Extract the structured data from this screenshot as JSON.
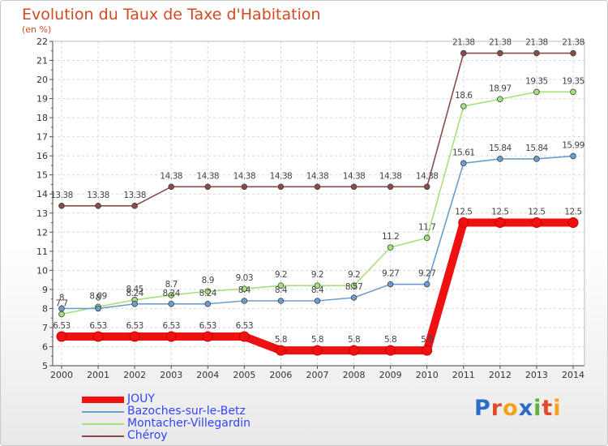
{
  "title": "Evolution du Taux de Taxe d'Habitation",
  "unit": "(en %)",
  "logo": {
    "letters": [
      {
        "char": "P",
        "color": "#2b6cc4"
      },
      {
        "char": "r",
        "color": "#e04b2e"
      },
      {
        "char": "o",
        "color": "#f2a21b"
      },
      {
        "char": "x",
        "color": "#2b6cc4"
      },
      {
        "char": "i",
        "color": "#5fb33a"
      },
      {
        "char": "t",
        "color": "#e04b2e"
      },
      {
        "char": "i",
        "color": "#f2a21b"
      }
    ]
  },
  "chart_data": {
    "type": "line",
    "x": [
      2000,
      2001,
      2002,
      2003,
      2004,
      2005,
      2006,
      2007,
      2008,
      2009,
      2010,
      2011,
      2012,
      2013,
      2014
    ],
    "ylim": [
      5,
      22
    ],
    "yticks": [
      5,
      6,
      7,
      8,
      9,
      10,
      11,
      12,
      13,
      14,
      15,
      16,
      17,
      18,
      19,
      20,
      21,
      22
    ],
    "grid": true,
    "legend_position": "bottom-left",
    "series": [
      {
        "name": "JOUY",
        "color": "#ee1111",
        "values": [
          6.53,
          6.53,
          6.53,
          6.53,
          6.53,
          6.53,
          5.8,
          5.8,
          5.8,
          5.8,
          5.8,
          12.5,
          12.5,
          12.5,
          12.5
        ],
        "labels": [
          "6.53",
          "6.53",
          "6.53",
          "6.53",
          "6.53",
          "6.53",
          "5.8",
          "5.8",
          "5.8",
          "5.8",
          "5.8",
          "12.5",
          "12.5",
          "12.5",
          "12.5"
        ]
      },
      {
        "name": "Bazoches-sur-le-Betz",
        "color": "#6a9ed0",
        "values": [
          8,
          8,
          8.24,
          8.24,
          8.24,
          8.4,
          8.4,
          8.4,
          8.57,
          9.27,
          9.27,
          15.61,
          15.84,
          15.84,
          15.99
        ],
        "labels": [
          "8",
          "8",
          "8.24",
          "8.24",
          "8.24",
          "8.4",
          "8.4",
          "8.4",
          "8.57",
          "9.27",
          "9.27",
          "15.61",
          "15.84",
          "15.84",
          "15.99"
        ]
      },
      {
        "name": "Montacher-Villegardin",
        "color": "#a6e07c",
        "values": [
          7.7,
          8.09,
          8.45,
          8.7,
          8.9,
          9.03,
          9.2,
          9.2,
          9.2,
          11.2,
          11.7,
          18.6,
          18.97,
          19.35,
          19.35
        ],
        "labels": [
          "7.7",
          "8.09",
          "8.45",
          "8.7",
          "8.9",
          "9.03",
          "9.2",
          "9.2",
          "9.2",
          "11.2",
          "11.7",
          "18.6",
          "18.97",
          "19.35",
          "19.35"
        ]
      },
      {
        "name": "Chéroy",
        "color": "#8b4a4a",
        "values": [
          13.38,
          13.38,
          13.38,
          14.38,
          14.38,
          14.38,
          14.38,
          14.38,
          14.38,
          14.38,
          14.38,
          21.38,
          21.38,
          21.38,
          21.38
        ],
        "labels": [
          "13.38",
          "13.38",
          "13.38",
          "14.38",
          "14.38",
          "14.38",
          "14.38",
          "14.38",
          "14.38",
          "14.38",
          "14.38",
          "21.38",
          "21.38",
          "21.38",
          "21.38"
        ]
      }
    ]
  }
}
